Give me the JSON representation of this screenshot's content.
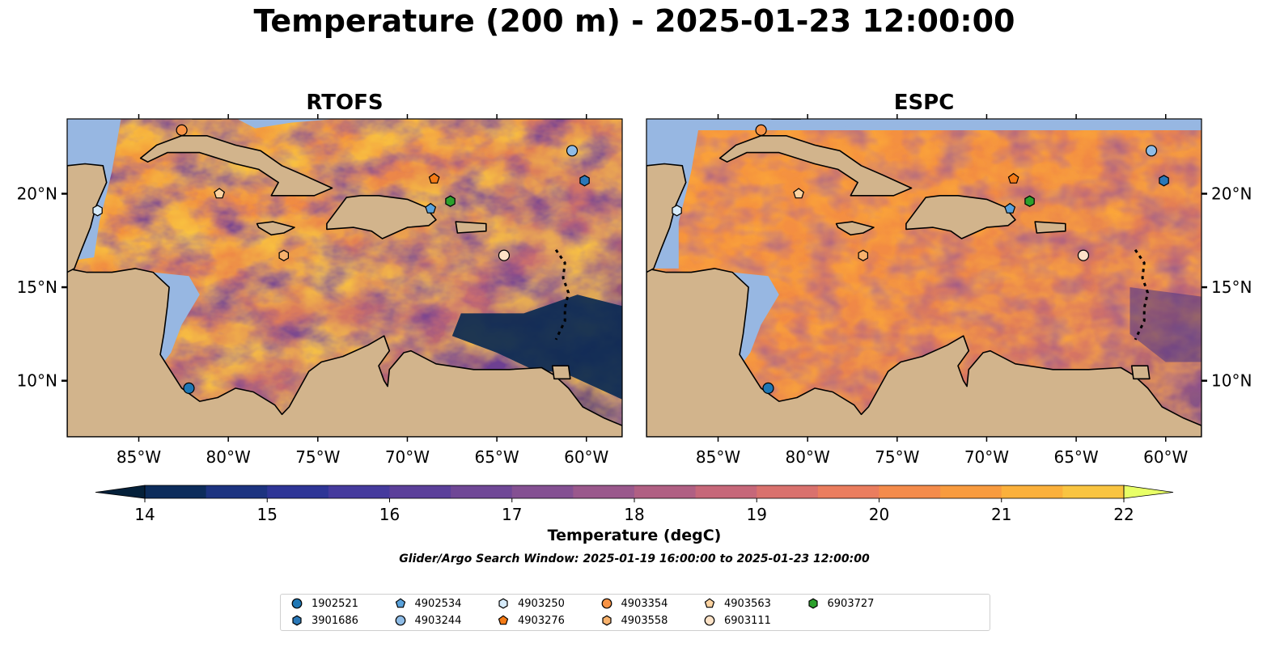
{
  "title": "Temperature (200 m) - 2025-01-23 12:00:00",
  "panels": [
    {
      "title": "RTOFS",
      "variant": "rtofs"
    },
    {
      "title": "ESPC",
      "variant": "espc"
    }
  ],
  "lon_ticks": [
    "85°W",
    "80°W",
    "75°W",
    "70°W",
    "65°W",
    "60°W"
  ],
  "lon_values": [
    -85,
    -80,
    -75,
    -70,
    -65,
    -60
  ],
  "lat_ticks": [
    "10°N",
    "15°N",
    "20°N"
  ],
  "lat_values": [
    10,
    15,
    20
  ],
  "extent": {
    "lon_min": -89,
    "lon_max": -58,
    "lat_min": 7,
    "lat_max": 24
  },
  "colorbar": {
    "label": "Temperature (degC)",
    "min": 14,
    "max": 22,
    "step": 0.5,
    "tick_values": [
      14,
      15,
      16,
      17,
      18,
      19,
      20,
      21,
      22
    ],
    "tick_labels": [
      "14",
      "15",
      "16",
      "17",
      "18",
      "19",
      "20",
      "21",
      "22"
    ],
    "colormap": "thermal",
    "extend": "both"
  },
  "search_window": "Glider/Argo Search Window: 2025-01-19 16:00:00 to 2025-01-23 12:00:00",
  "colors": {
    "land": "#d2b48c",
    "shelf": "#97b7e2",
    "deep_water": "#03243a"
  },
  "floats": [
    {
      "id": "1902521",
      "marker": "circle",
      "color": "#1f77b4",
      "lon": -82.2,
      "lat": 9.6
    },
    {
      "id": "3901686",
      "marker": "hexagon",
      "color": "#2a78b8",
      "lon": -60.1,
      "lat": 20.7
    },
    {
      "id": "4902534",
      "marker": "pentagon",
      "color": "#5aa2db",
      "lon": -68.7,
      "lat": 19.2
    },
    {
      "id": "4903244",
      "marker": "circle",
      "color": "#8fbce6",
      "lon": -60.8,
      "lat": 22.3
    },
    {
      "id": "4903250",
      "marker": "hexagon",
      "color": "#d6ebfa",
      "lon": -87.3,
      "lat": 19.1
    },
    {
      "id": "4903276",
      "marker": "pentagon",
      "color": "#f47b16",
      "lon": -68.5,
      "lat": 20.8
    },
    {
      "id": "4903354",
      "marker": "circle",
      "color": "#f89345",
      "lon": -82.6,
      "lat": 23.4
    },
    {
      "id": "4903558",
      "marker": "hexagon",
      "color": "#f8b26d",
      "lon": -76.9,
      "lat": 16.7
    },
    {
      "id": "4903563",
      "marker": "pentagon",
      "color": "#fcd3a1",
      "lon": -80.5,
      "lat": 20.0
    },
    {
      "id": "6903111",
      "marker": "circle",
      "color": "#fde2c7",
      "lon": -64.6,
      "lat": 16.7
    },
    {
      "id": "6903727",
      "marker": "hexagon",
      "color": "#2ca02c",
      "lon": -67.6,
      "lat": 19.6
    }
  ]
}
